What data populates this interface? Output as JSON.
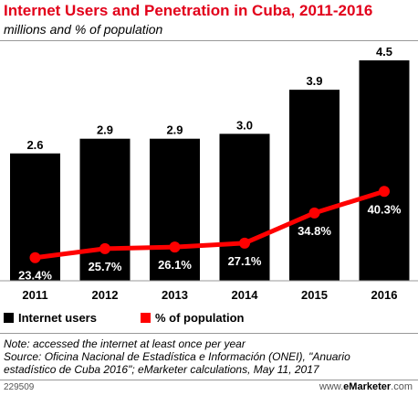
{
  "header": {
    "title": "Internet Users and Penetration in Cuba, 2011-2016",
    "subtitle": "millions and % of population"
  },
  "chart_data": {
    "type": "bar",
    "categories": [
      "2011",
      "2012",
      "2013",
      "2014",
      "2015",
      "2016"
    ],
    "series": [
      {
        "name": "Internet users",
        "type": "bar",
        "values": [
          2.6,
          2.9,
          2.9,
          3.0,
          3.9,
          4.5
        ],
        "labels": [
          "2.6",
          "2.9",
          "2.9",
          "3.0",
          "3.9",
          "4.5"
        ],
        "color": "#000000"
      },
      {
        "name": "% of population",
        "type": "line",
        "values": [
          23.4,
          25.7,
          26.1,
          27.1,
          34.8,
          40.3
        ],
        "labels": [
          "23.4%",
          "25.7%",
          "26.1%",
          "27.1%",
          "34.8%",
          "40.3%"
        ],
        "color": "#ff0000"
      }
    ],
    "ylim_bars": [
      0,
      4.5
    ],
    "ylim_line": [
      0,
      70
    ],
    "grid": false,
    "legend_placement": "bottom-left"
  },
  "legend": {
    "items": [
      {
        "label": "Internet users",
        "color": "#000000"
      },
      {
        "label": "% of population",
        "color": "#ff0000"
      }
    ]
  },
  "notes": {
    "line1": "Note: accessed the internet at least once per year",
    "line2": "Source: Oficina Nacional de Estadística e Información (ONEI), \"Anuario",
    "line3": "estadístico de Cuba 2016\"; eMarketer calculations, May 11, 2017"
  },
  "footer": {
    "id": "229509",
    "site_prefix": "www.",
    "site_brand": "eMarketer",
    "site_suffix": ".com"
  }
}
